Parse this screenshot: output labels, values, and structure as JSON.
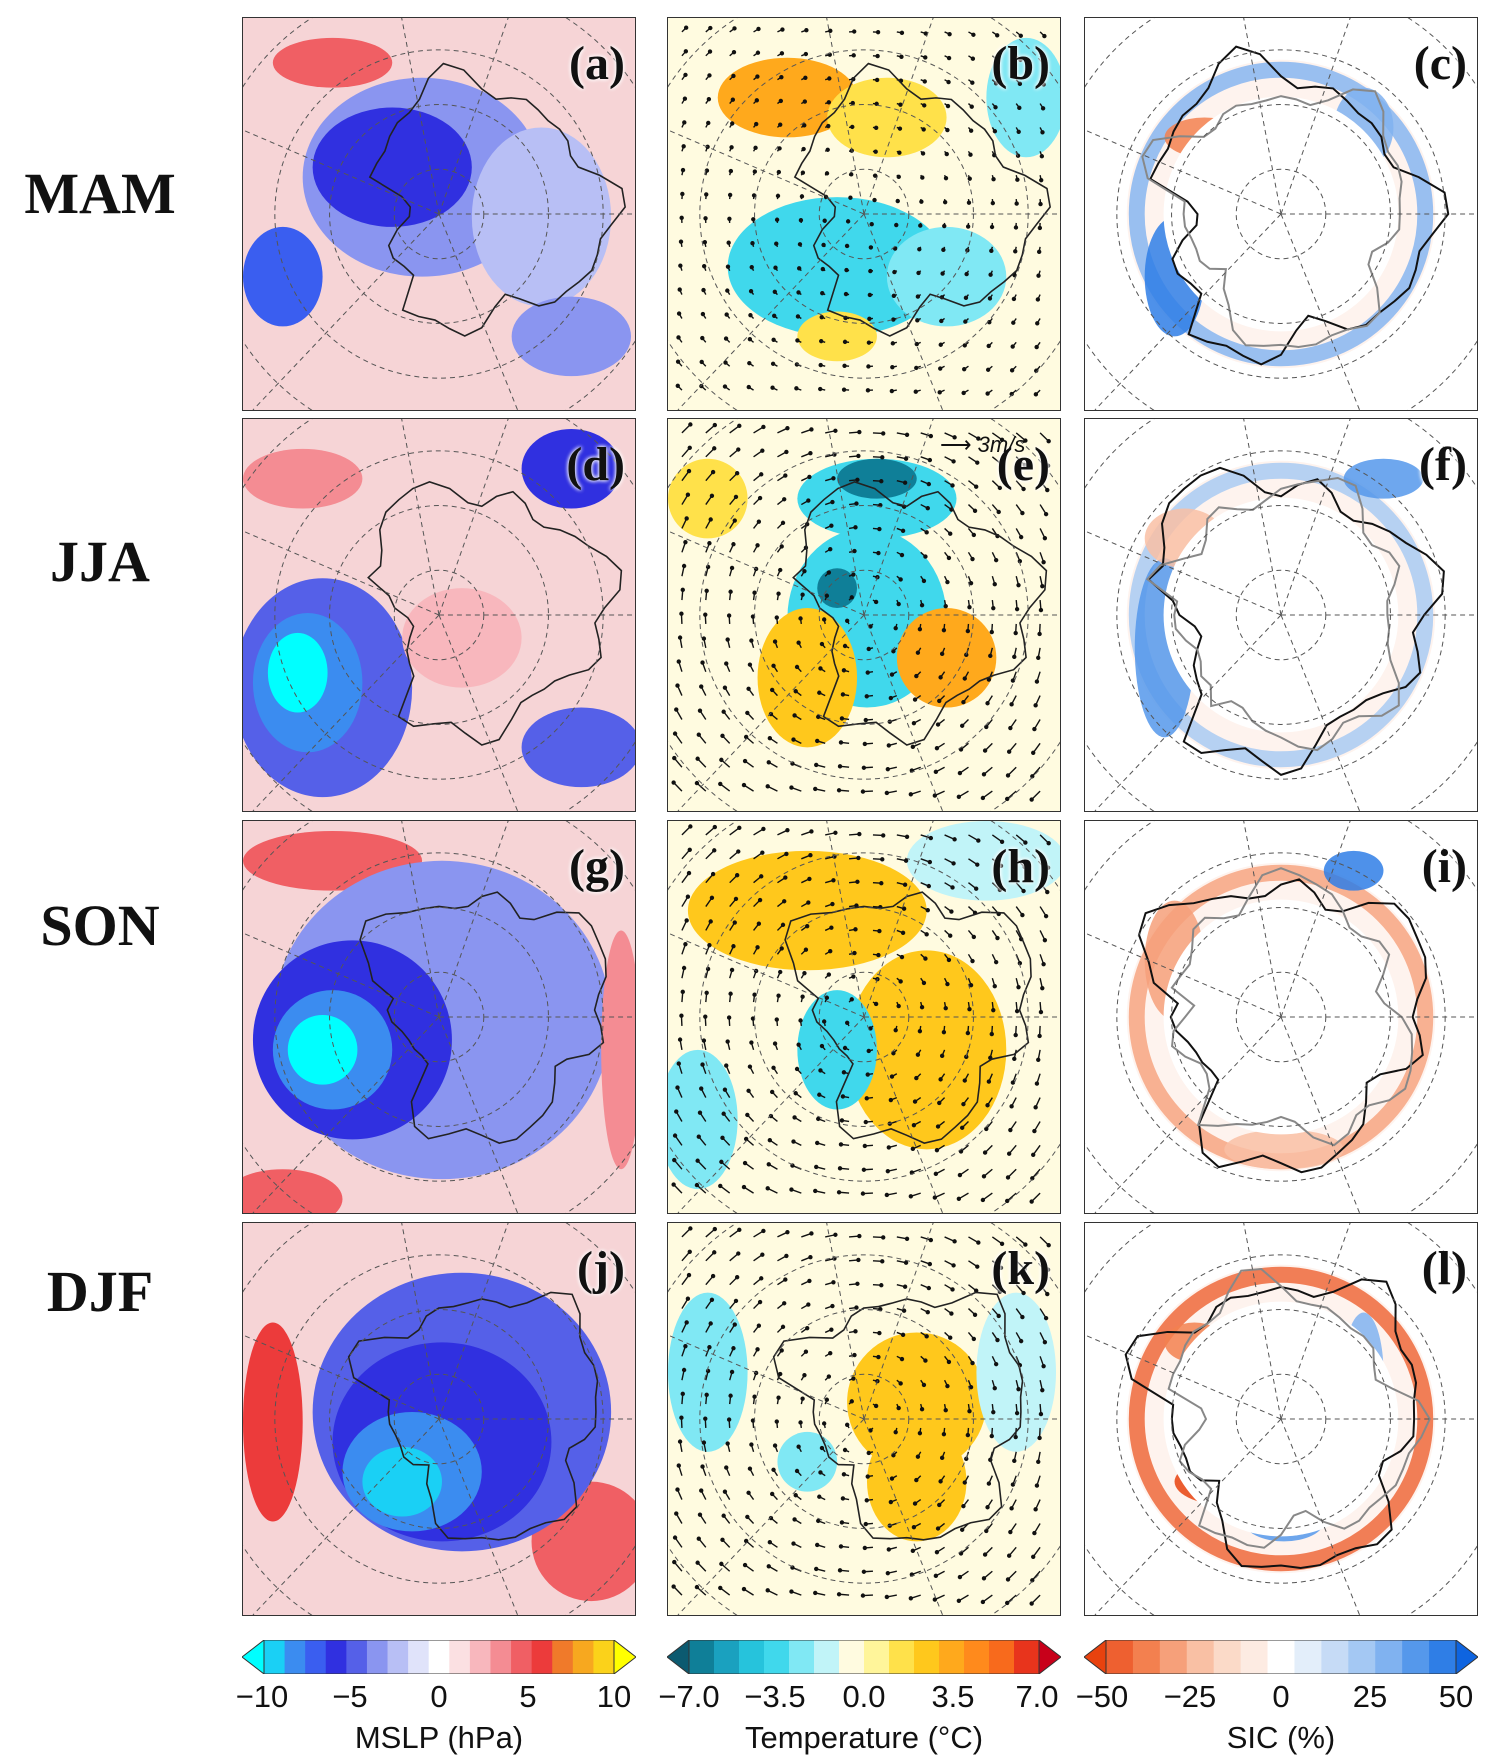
{
  "seasons": [
    "MAM",
    "JJA",
    "SON",
    "DJF"
  ],
  "panel_labels": [
    "(a)",
    "(b)",
    "(c)",
    "(d)",
    "(e)",
    "(f)",
    "(g)",
    "(h)",
    "(i)",
    "(j)",
    "(k)",
    "(l)"
  ],
  "reference_vector": "3m/s",
  "colorbars": [
    {
      "title": "MSLP (hPa)",
      "ticks": [
        "−10",
        "−5",
        "0",
        "5",
        "10"
      ],
      "colors": [
        "#00ffff",
        "#1ad0f5",
        "#3b8cf0",
        "#3a5ef0",
        "#3030e0",
        "#5560e8",
        "#8a95f0",
        "#b8bff5",
        "#e0e3fa",
        "#ffffff",
        "#fbe0e2",
        "#f8b7bd",
        "#f48c93",
        "#f05f64",
        "#ec3b3b",
        "#f07a2a",
        "#f7a81f",
        "#fbd21a",
        "#ffff00"
      ]
    },
    {
      "title": "Temperature (°C)",
      "ticks": [
        "−7.0",
        "−3.5",
        "0.0",
        "3.5",
        "7.0"
      ],
      "colors": [
        "#0c5a70",
        "#0f7f98",
        "#1aa1bf",
        "#26c3dc",
        "#40d8ec",
        "#80e8f4",
        "#c1f4f8",
        "#fffbe0",
        "#fff59a",
        "#ffe14a",
        "#ffc81c",
        "#ffa91c",
        "#ff8a1c",
        "#f86a1c",
        "#e8341c",
        "#c8001a"
      ]
    },
    {
      "title": "SIC (%)",
      "ticks": [
        "−50",
        "−25",
        "0",
        "25",
        "50"
      ],
      "colors": [
        "#e8420e",
        "#ee6030",
        "#f3804f",
        "#f6a07a",
        "#f9c0a4",
        "#fbdac8",
        "#fdebe2",
        "#ffffff",
        "#e3eefa",
        "#c6dbf6",
        "#a4c8f3",
        "#80b2f0",
        "#5598eb",
        "#2f7ee6",
        "#0e64e0"
      ]
    }
  ]
}
